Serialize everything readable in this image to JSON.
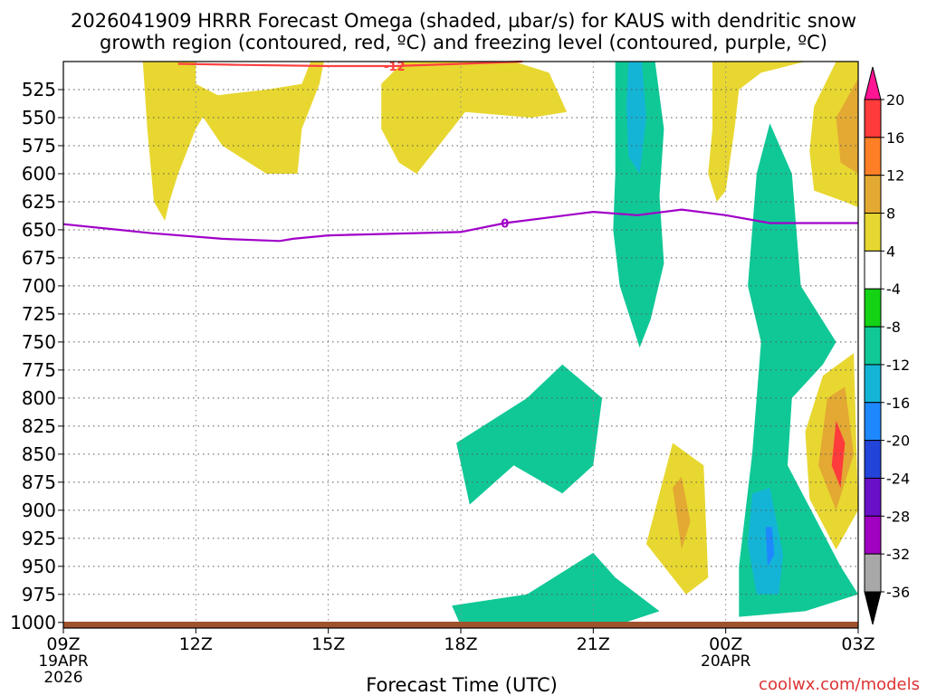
{
  "chart_data": {
    "type": "heatmap",
    "title_line1": "2026041909 HRRR Forecast Omega (shaded, µbar/s) for KAUS with dendritic snow",
    "title_line2": "growth region (contoured, red, ºC) and freezing level (contoured, purple, ºC)",
    "xlabel": "Forecast Time (UTC)",
    "x_ticks": [
      {
        "hour": 0,
        "label": "09Z",
        "sub1": "19APR",
        "sub2": "2026"
      },
      {
        "hour": 3,
        "label": "12Z"
      },
      {
        "hour": 6,
        "label": "15Z"
      },
      {
        "hour": 9,
        "label": "18Z"
      },
      {
        "hour": 12,
        "label": "21Z"
      },
      {
        "hour": 15,
        "label": "00Z",
        "sub1": "20APR"
      },
      {
        "hour": 18,
        "label": "03Z"
      }
    ],
    "x_range_hours": [
      0,
      18
    ],
    "y_axis": "pressure (hPa)",
    "y_range": [
      500,
      1005
    ],
    "y_ticks": [
      525,
      550,
      575,
      600,
      625,
      650,
      675,
      700,
      725,
      750,
      775,
      800,
      825,
      850,
      875,
      900,
      925,
      950,
      975,
      1000
    ],
    "colorbar": {
      "levels": [
        "20",
        "16",
        "12",
        "8",
        "4",
        "-4",
        "-8",
        "-12",
        "-16",
        "-20",
        "-24",
        "-28",
        "-32",
        "-36"
      ],
      "colors": [
        "#ff1493",
        "#ff3b3b",
        "#ff7f26",
        "#e3a933",
        "#e8d730",
        "#ffffff",
        "#14d214",
        "#10c896",
        "#14b4d6",
        "#1e88ff",
        "#2244d8",
        "#6a10c8",
        "#a000c0",
        "#a8a8a8",
        "#000000"
      ]
    },
    "contours": [
      {
        "name": "dendritic-growth -12C",
        "color": "#ff4040",
        "label": "-12",
        "points": [
          [
            2.6,
            502
          ],
          [
            4,
            503
          ],
          [
            6,
            504
          ],
          [
            7.5,
            504
          ],
          [
            9,
            502
          ],
          [
            10.4,
            500
          ]
        ]
      },
      {
        "name": "freezing-level 0C",
        "color": "#a000c8",
        "label": "0",
        "points": [
          [
            0,
            645
          ],
          [
            2,
            653
          ],
          [
            3.6,
            658
          ],
          [
            4.9,
            660
          ],
          [
            5.2,
            658
          ],
          [
            6,
            655
          ],
          [
            9,
            652
          ],
          [
            10,
            644
          ],
          [
            12,
            634
          ],
          [
            13,
            637
          ],
          [
            14,
            632
          ],
          [
            15,
            637
          ],
          [
            16,
            644
          ],
          [
            18,
            644
          ]
        ]
      }
    ],
    "regions": [
      {
        "name": "weak-ascent-yellow-upper-left",
        "value": 4,
        "points": [
          [
            1.8,
            500
          ],
          [
            3,
            500
          ],
          [
            3.6,
            520
          ],
          [
            3,
            560
          ],
          [
            2.6,
            600
          ],
          [
            2.4,
            625
          ],
          [
            2.3,
            642
          ],
          [
            2.05,
            625
          ],
          [
            1.9,
            560
          ]
        ]
      },
      {
        "name": "weak-ascent-yellow-upper-mid",
        "value": 4,
        "points": [
          [
            2.9,
            500
          ],
          [
            5.9,
            500
          ],
          [
            5.8,
            520
          ],
          [
            5.4,
            560
          ],
          [
            5.3,
            600
          ],
          [
            4.6,
            600
          ],
          [
            3.6,
            575
          ],
          [
            3,
            540
          ],
          [
            3,
            500
          ]
        ]
      },
      {
        "name": "clear-gap-white",
        "value": 0,
        "points": [
          [
            3,
            500
          ],
          [
            5.6,
            500
          ],
          [
            5.4,
            520
          ],
          [
            4.6,
            525
          ],
          [
            3.5,
            530
          ],
          [
            3.0,
            520
          ]
        ]
      },
      {
        "name": "weak-ascent-yellow-upper-center",
        "value": 4,
        "points": [
          [
            7.7,
            500
          ],
          [
            10.2,
            500
          ],
          [
            11,
            510
          ],
          [
            11.4,
            545
          ],
          [
            10.6,
            550
          ],
          [
            9.1,
            545
          ],
          [
            8.5,
            575
          ],
          [
            8,
            600
          ],
          [
            7.6,
            590
          ],
          [
            7.2,
            560
          ],
          [
            7.2,
            520
          ]
        ]
      },
      {
        "name": "weak-ascent-yellow-upper-right",
        "value": 4,
        "points": [
          [
            14.7,
            500
          ],
          [
            16.8,
            500
          ],
          [
            15.8,
            510
          ],
          [
            15.3,
            525
          ],
          [
            15.2,
            560
          ],
          [
            15,
            615
          ],
          [
            14.8,
            625
          ],
          [
            14.6,
            600
          ],
          [
            14.7,
            560
          ]
        ]
      },
      {
        "name": "weak-ascent-yellow-far-right",
        "value": 4,
        "points": [
          [
            17.5,
            500
          ],
          [
            18,
            500
          ],
          [
            18,
            630
          ],
          [
            17.7,
            625
          ],
          [
            17,
            615
          ],
          [
            16.9,
            580
          ],
          [
            17,
            540
          ]
        ]
      },
      {
        "name": "moderate-ascent-orange-far-right",
        "value": 8,
        "points": [
          [
            18,
            515
          ],
          [
            18,
            600
          ],
          [
            17.6,
            590
          ],
          [
            17.5,
            550
          ]
        ]
      },
      {
        "name": "weak-descent-green-center-column",
        "value": -8,
        "points": [
          [
            12.5,
            500
          ],
          [
            13.4,
            500
          ],
          [
            13.6,
            560
          ],
          [
            13.5,
            620
          ],
          [
            13.6,
            680
          ],
          [
            13.3,
            730
          ],
          [
            13.05,
            755
          ],
          [
            12.6,
            700
          ],
          [
            12.45,
            650
          ],
          [
            12.5,
            600
          ]
        ]
      },
      {
        "name": "descent-teal-center-core",
        "value": -12,
        "points": [
          [
            12.8,
            500
          ],
          [
            13.1,
            500
          ],
          [
            13.2,
            550
          ],
          [
            13.05,
            600
          ],
          [
            12.8,
            585
          ],
          [
            12.75,
            540
          ]
        ]
      },
      {
        "name": "weak-descent-green-right-column",
        "value": -8,
        "points": [
          [
            16.0,
            555
          ],
          [
            16.5,
            600
          ],
          [
            16.7,
            700
          ],
          [
            17.5,
            750
          ],
          [
            17.2,
            770
          ],
          [
            16.5,
            800
          ],
          [
            16.4,
            860
          ],
          [
            17.6,
            950
          ],
          [
            18,
            975
          ],
          [
            16.8,
            990
          ],
          [
            15.3,
            995
          ],
          [
            15.3,
            950
          ],
          [
            15.6,
            850
          ],
          [
            15.8,
            750
          ],
          [
            15.5,
            700
          ],
          [
            15.7,
            600
          ]
        ]
      },
      {
        "name": "descent-teal-right-core",
        "value": -12,
        "points": [
          [
            15.6,
            885
          ],
          [
            16.0,
            880
          ],
          [
            16.3,
            940
          ],
          [
            16.2,
            975
          ],
          [
            15.7,
            975
          ],
          [
            15.5,
            930
          ]
        ]
      },
      {
        "name": "descent-blue-right-core",
        "value": -16,
        "points": [
          [
            15.9,
            915
          ],
          [
            16.05,
            915
          ],
          [
            16.1,
            940
          ],
          [
            15.95,
            950
          ]
        ]
      },
      {
        "name": "weak-descent-green-lower-center",
        "value": -8,
        "points": [
          [
            8.9,
            840
          ],
          [
            10.5,
            800
          ],
          [
            11.3,
            770
          ],
          [
            12.2,
            800
          ],
          [
            12,
            860
          ],
          [
            11.3,
            885
          ],
          [
            10.2,
            860
          ],
          [
            9.2,
            895
          ]
        ]
      },
      {
        "name": "weak-descent-green-surface-band",
        "value": -8,
        "points": [
          [
            8.8,
            985
          ],
          [
            10.5,
            975
          ],
          [
            12,
            938
          ],
          [
            12.5,
            960
          ],
          [
            13.5,
            990
          ],
          [
            12.5,
            1003
          ],
          [
            9,
            1003
          ]
        ]
      },
      {
        "name": "weak-ascent-yellow-lower-right",
        "value": 4,
        "points": [
          [
            17.2,
            780
          ],
          [
            17.9,
            760
          ],
          [
            18,
            900
          ],
          [
            17.5,
            935
          ],
          [
            16.9,
            890
          ],
          [
            16.8,
            830
          ]
        ]
      },
      {
        "name": "moderate-ascent-orange-lower-right",
        "value": 8,
        "points": [
          [
            17.3,
            800
          ],
          [
            17.7,
            790
          ],
          [
            17.9,
            850
          ],
          [
            17.5,
            900
          ],
          [
            17.1,
            860
          ]
        ]
      },
      {
        "name": "strong-ascent-red-core",
        "value": 16,
        "points": [
          [
            17.5,
            820
          ],
          [
            17.7,
            840
          ],
          [
            17.6,
            880
          ],
          [
            17.4,
            860
          ]
        ]
      },
      {
        "name": "weak-ascent-yellow-lower-mid",
        "value": 4,
        "points": [
          [
            13.2,
            930
          ],
          [
            13.8,
            840
          ],
          [
            14.5,
            860
          ],
          [
            14.6,
            960
          ],
          [
            14.1,
            975
          ]
        ]
      },
      {
        "name": "moderate-ascent-orange-lower-mid",
        "value": 8,
        "points": [
          [
            13.8,
            880
          ],
          [
            14,
            870
          ],
          [
            14.2,
            910
          ],
          [
            14,
            935
          ]
        ]
      }
    ]
  },
  "footer": {
    "source": "coolwx.com/models"
  }
}
